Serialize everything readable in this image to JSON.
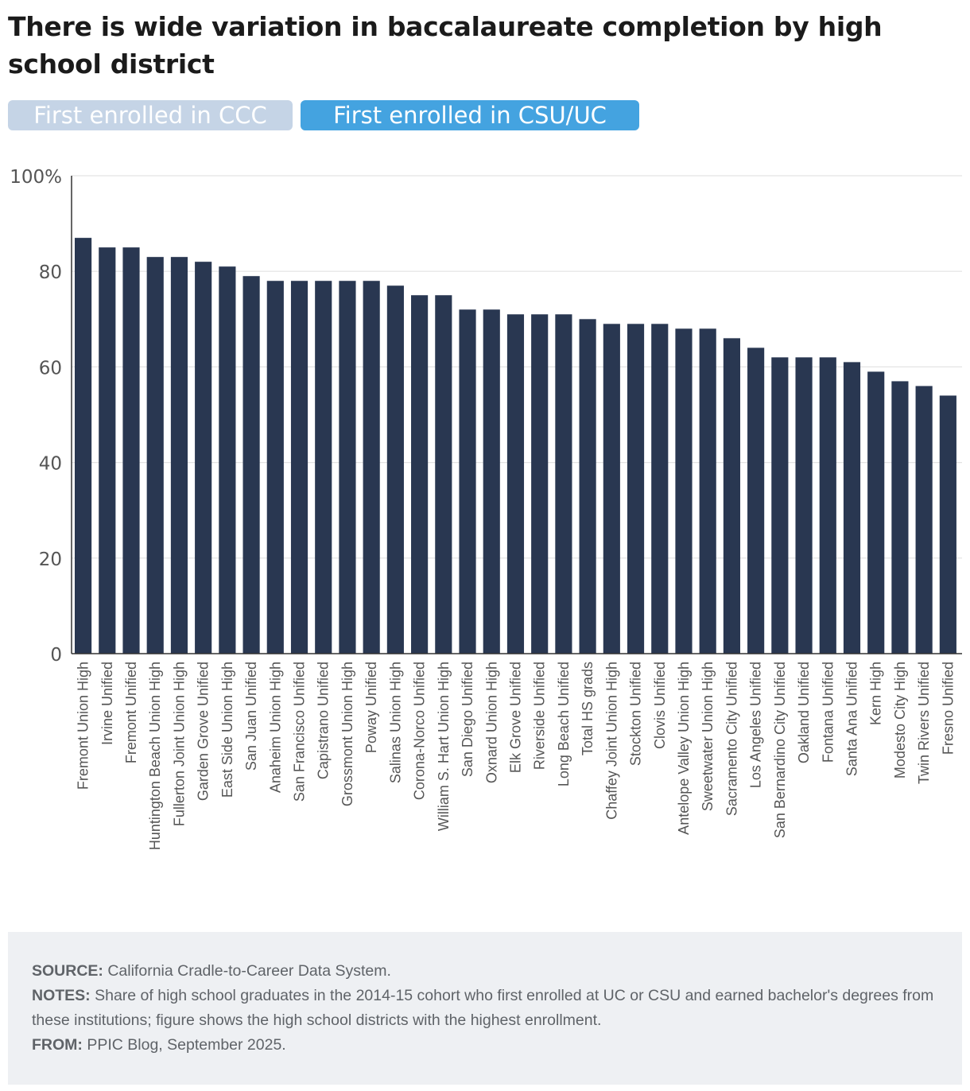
{
  "title": "There is wide variation in baccalaureate completion by high school district",
  "toggles": {
    "ccc_label": "First enrolled in CCC",
    "csu_label": "First enrolled in CSU/UC",
    "ccc_color": "#c5d4e6",
    "csu_color": "#44a3e0",
    "active": "First enrolled in CSU/UC"
  },
  "chart_data": {
    "type": "bar",
    "categories": [
      "Fremont Union High",
      "Irvine Unified",
      "Fremont Unified",
      "Huntington Beach Union High",
      "Fullerton Joint Union High",
      "Garden Grove Unified",
      "East Side Union High",
      "San Juan Unified",
      "Anaheim Union High",
      "San Francisco Unified",
      "Capistrano Unified",
      "Grossmont Union High",
      "Poway Unified",
      "Salinas Union High",
      "Corona-Norco Unified",
      "William S. Hart Union High",
      "San Diego Unified",
      "Oxnard Union High",
      "Elk Grove Unified",
      "Riverside Unified",
      "Long Beach Unified",
      "Total HS grads",
      "Chaffey Joint Union High",
      "Stockton Unified",
      "Clovis Unified",
      "Antelope Valley Union High",
      "Sweetwater Union High",
      "Sacramento City Unified",
      "Los Angeles Unified",
      "San Bernardino City Unified",
      "Oakland Unified",
      "Fontana Unified",
      "Santa Ana Unified",
      "Kern High",
      "Modesto City High",
      "Twin Rivers Unified",
      "Fresno Unified"
    ],
    "values": [
      87,
      85,
      85,
      83,
      83,
      82,
      81,
      79,
      78,
      78,
      78,
      78,
      78,
      77,
      75,
      75,
      72,
      72,
      71,
      71,
      71,
      70,
      69,
      69,
      69,
      68,
      68,
      66,
      64,
      62,
      62,
      62,
      61,
      59,
      57,
      56,
      54
    ],
    "ylim": [
      0,
      100
    ],
    "yticks": [
      0,
      20,
      40,
      60,
      80,
      100
    ],
    "ytick_labels": [
      "0",
      "20",
      "40",
      "60",
      "80",
      "100%"
    ],
    "bar_color": "#293751",
    "grid": true,
    "legend": "none"
  },
  "footer": {
    "source_label": "SOURCE:",
    "source_text": "California Cradle-to-Career Data System.",
    "notes_label": "NOTES:",
    "notes_text": "Share of high school graduates in the 2014-15 cohort who first enrolled at UC or CSU and earned bachelor's degrees from these institutions; figure shows the high school districts with the highest enrollment.",
    "from_label": "FROM:",
    "from_text": "PPIC Blog, September 2025."
  }
}
